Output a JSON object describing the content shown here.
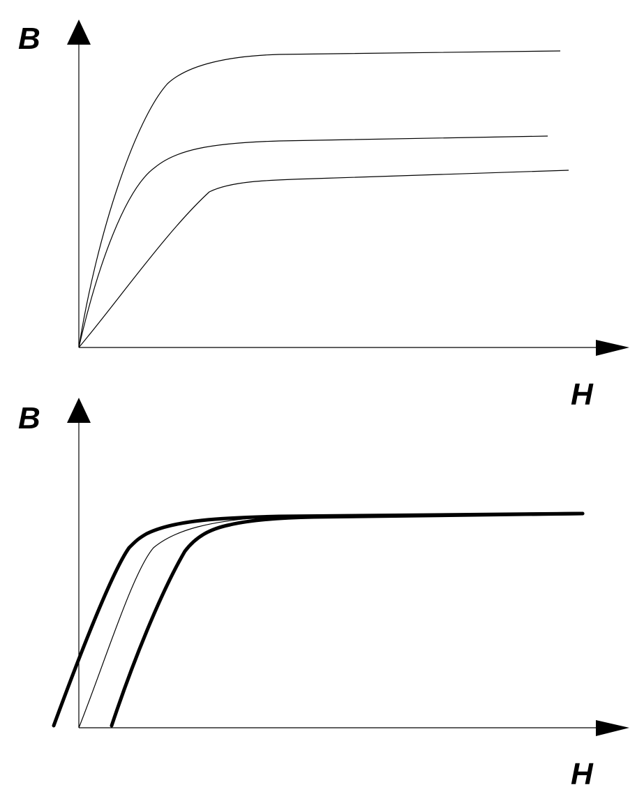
{
  "diagrams": [
    {
      "y_axis_label": "B",
      "x_axis_label": "H"
    },
    {
      "y_axis_label": "B",
      "x_axis_label": "H"
    }
  ]
}
